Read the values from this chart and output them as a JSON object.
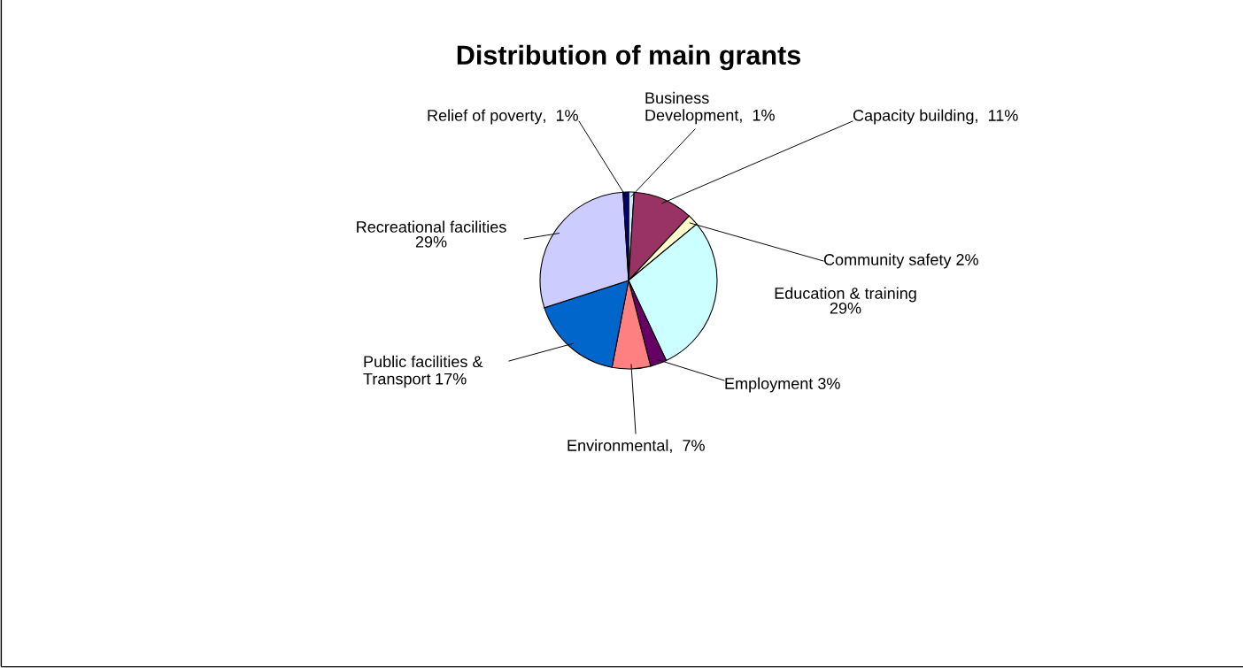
{
  "chart_data": {
    "type": "pie",
    "title": "Distribution of main grants",
    "categories": [
      "Business Development",
      "Capacity building",
      "Community safety",
      "Education & training",
      "Employment",
      "Environmental",
      "Public facilities & Transport",
      "Recreational facilities",
      "Relief of poverty"
    ],
    "values": [
      1,
      11,
      2,
      29,
      3,
      7,
      17,
      29,
      1
    ],
    "colors": [
      "#ccecff",
      "#993366",
      "#ffffcc",
      "#ccffff",
      "#660066",
      "#ff8080",
      "#0066cc",
      "#ccccff",
      "#000080"
    ],
    "value_labels": [
      ",  1%",
      ",  11%",
      " 2%",
      "29%",
      " 3%",
      ",  7%",
      " 17%",
      "29%",
      ",  1%"
    ],
    "legend": false
  }
}
